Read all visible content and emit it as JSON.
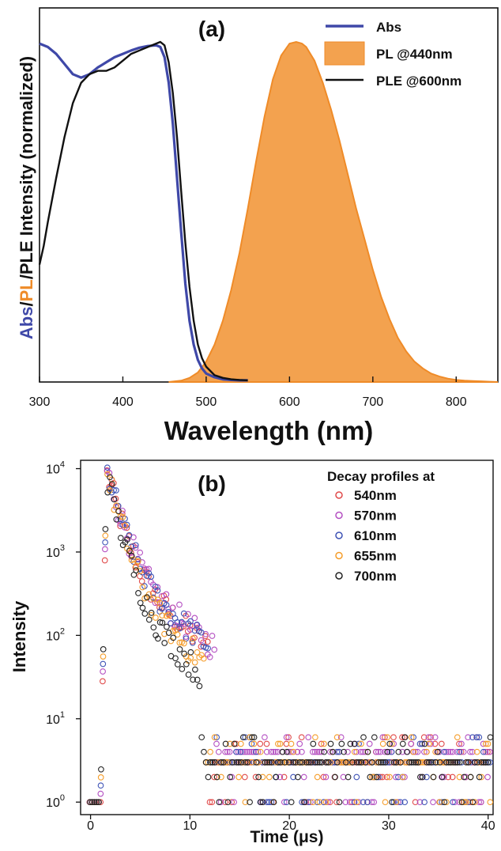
{
  "chart_data": [
    {
      "type": "line",
      "panel_label": "(a)",
      "xlabel": "Wavelength (nm)",
      "ylabel": {
        "part_abs": "Abs",
        "sep1": "/",
        "part_pl": "PL",
        "sep2": "/",
        "part_ple": "PLE Intensity (normalized)"
      },
      "xlim": [
        300,
        850
      ],
      "ylim": [
        0,
        1.0
      ],
      "xticks": [
        300,
        400,
        500,
        600,
        700,
        800
      ],
      "legend_position": "top-right",
      "series": [
        {
          "name": "Abs",
          "color": "#3f48a8",
          "style": "line",
          "x": [
            300,
            310,
            320,
            330,
            340,
            350,
            360,
            370,
            380,
            390,
            400,
            410,
            420,
            430,
            440,
            445,
            450,
            455,
            460,
            465,
            470,
            475,
            480,
            485,
            490,
            495,
            500,
            510,
            520,
            530,
            540,
            550
          ],
          "y": [
            0.995,
            0.985,
            0.965,
            0.935,
            0.905,
            0.895,
            0.905,
            0.925,
            0.94,
            0.955,
            0.965,
            0.975,
            0.983,
            0.988,
            0.99,
            0.985,
            0.955,
            0.88,
            0.76,
            0.6,
            0.44,
            0.29,
            0.18,
            0.11,
            0.065,
            0.04,
            0.025,
            0.014,
            0.008,
            0.006,
            0.005,
            0.005
          ]
        },
        {
          "name": "PL @440nm",
          "color": "#f3a24f",
          "stroke": "#ef8b28",
          "style": "area",
          "x": [
            455,
            470,
            480,
            490,
            500,
            510,
            520,
            530,
            540,
            550,
            560,
            570,
            580,
            590,
            600,
            608,
            615,
            620,
            630,
            640,
            650,
            660,
            670,
            680,
            690,
            700,
            710,
            720,
            730,
            740,
            750,
            760,
            770,
            780,
            790,
            800,
            810,
            820,
            830,
            840,
            850
          ],
          "y": [
            0.0,
            0.004,
            0.012,
            0.028,
            0.06,
            0.11,
            0.18,
            0.27,
            0.38,
            0.51,
            0.65,
            0.78,
            0.89,
            0.96,
            0.995,
            1.0,
            0.995,
            0.985,
            0.945,
            0.88,
            0.8,
            0.71,
            0.61,
            0.51,
            0.42,
            0.33,
            0.25,
            0.185,
            0.13,
            0.09,
            0.06,
            0.04,
            0.025,
            0.016,
            0.01,
            0.006,
            0.004,
            0.003,
            0.002,
            0.001,
            0.0
          ]
        },
        {
          "name": "PLE @600nm",
          "color": "#111111",
          "style": "line",
          "x": [
            300,
            305,
            310,
            320,
            330,
            340,
            350,
            360,
            370,
            380,
            390,
            400,
            410,
            420,
            430,
            440,
            445,
            450,
            455,
            460,
            465,
            470,
            475,
            480,
            485,
            490,
            495,
            500,
            510,
            520,
            530,
            540,
            550
          ],
          "y": [
            0.345,
            0.4,
            0.47,
            0.6,
            0.72,
            0.82,
            0.88,
            0.905,
            0.915,
            0.915,
            0.925,
            0.945,
            0.965,
            0.975,
            0.985,
            0.995,
            1.0,
            0.99,
            0.94,
            0.85,
            0.72,
            0.56,
            0.41,
            0.28,
            0.18,
            0.11,
            0.07,
            0.045,
            0.02,
            0.012,
            0.008,
            0.006,
            0.005
          ]
        }
      ]
    },
    {
      "type": "scatter",
      "panel_label": "(b)",
      "xlabel": "Time (μs)",
      "ylabel": "Intensity",
      "xlim": [
        -1,
        40.5
      ],
      "ylim_log10": [
        -0.15,
        4.1
      ],
      "yscale": "log",
      "xticks": [
        0,
        10,
        20,
        30,
        40
      ],
      "ytick_labels": [
        {
          "base": "10",
          "exp": "0",
          "value": 1
        },
        {
          "base": "10",
          "exp": "1",
          "value": 10
        },
        {
          "base": "10",
          "exp": "2",
          "value": 100
        },
        {
          "base": "10",
          "exp": "3",
          "value": 1000
        },
        {
          "base": "10",
          "exp": "4",
          "value": 10000
        }
      ],
      "legend_title": "Decay profiles at",
      "legend_position": "top-right",
      "marker": "open-circle",
      "series": [
        {
          "name": "540nm",
          "color": "#e04a4a",
          "peak": 9000,
          "tau1": 1.0,
          "a2": 0.08,
          "tau2": 4.4,
          "floor": 3.0,
          "noise": 0.32,
          "tail_end": 12.0,
          "phase": 0.0
        },
        {
          "name": "570nm",
          "color": "#b44fc2",
          "peak": 10000,
          "tau1": 1.0,
          "a2": 0.075,
          "tau2": 4.6,
          "floor": 3.5,
          "noise": 0.34,
          "tail_end": 12.5,
          "phase": 0.3
        },
        {
          "name": "610nm",
          "color": "#3d52b5",
          "peak": 9500,
          "tau1": 1.0,
          "a2": 0.08,
          "tau2": 4.4,
          "floor": 3.3,
          "noise": 0.32,
          "tail_end": 12.0,
          "phase": 0.6
        },
        {
          "name": "655nm",
          "color": "#f59d2a",
          "peak": 9000,
          "tau1": 0.95,
          "a2": 0.06,
          "tau2": 4.0,
          "floor": 2.8,
          "noise": 0.34,
          "tail_end": 11.5,
          "phase": 0.9
        },
        {
          "name": "700nm",
          "color": "#222222",
          "peak": 8500,
          "tau1": 0.9,
          "a2": 0.05,
          "tau2": 3.7,
          "floor": 2.5,
          "noise": 0.34,
          "tail_end": 11.0,
          "phase": 1.2
        }
      ]
    }
  ]
}
